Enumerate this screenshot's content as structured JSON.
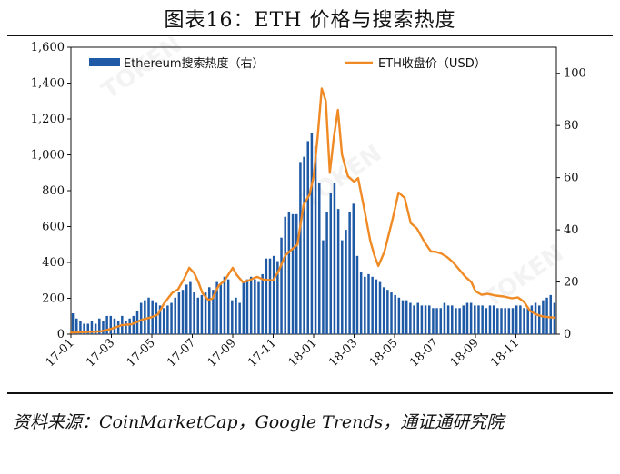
{
  "title": "图表16：ETH 价格与搜索热度",
  "source": "资料来源：CoinMarketCap，Google Trends，通证通研究院",
  "chart_data": {
    "type": "bar+line",
    "legend": [
      {
        "name": "Ethereum搜索热度（右）",
        "kind": "bar",
        "color": "#1f5aa6"
      },
      {
        "name": "ETH收盘价（USD）",
        "kind": "line",
        "color": "#f08a24"
      }
    ],
    "left_axis": {
      "range": [
        0,
        1600
      ],
      "ticks": [
        "0",
        "200",
        "400",
        "600",
        "800",
        "1,000",
        "1,200",
        "1,400",
        "1,600"
      ]
    },
    "right_axis": {
      "range": [
        0,
        110
      ],
      "ticks": [
        "0",
        "20",
        "40",
        "60",
        "80",
        "100"
      ]
    },
    "x_range": [
      0,
      24
    ],
    "x_ticks": [
      {
        "t": 0,
        "label": "17-01"
      },
      {
        "t": 2,
        "label": "17-03"
      },
      {
        "t": 4,
        "label": "17-05"
      },
      {
        "t": 6,
        "label": "17-07"
      },
      {
        "t": 8,
        "label": "17-09"
      },
      {
        "t": 10,
        "label": "17-11"
      },
      {
        "t": 12,
        "label": "18-01"
      },
      {
        "t": 14,
        "label": "18-03"
      },
      {
        "t": 16,
        "label": "18-05"
      },
      {
        "t": 18,
        "label": "18-07"
      },
      {
        "t": 20,
        "label": "18-09"
      },
      {
        "t": 22,
        "label": "18-11"
      }
    ],
    "bar_series": {
      "name": "Ethereum搜索热度（右）",
      "values": [
        8,
        6,
        5,
        4,
        4,
        5,
        4,
        6,
        5,
        7,
        7,
        6,
        5,
        7,
        5,
        6,
        7,
        9,
        12,
        13,
        14,
        13,
        12,
        11,
        10,
        11,
        12,
        14,
        16,
        17,
        19,
        20,
        16,
        14,
        15,
        16,
        18,
        17,
        20,
        19,
        22,
        21,
        13,
        14,
        12,
        20,
        21,
        22,
        21,
        20,
        23,
        29,
        29,
        30,
        28,
        37,
        45,
        47,
        46,
        46,
        66,
        68,
        74,
        77,
        72,
        58,
        36,
        47,
        54,
        58,
        48,
        36,
        40,
        47,
        50,
        30,
        24,
        22,
        23,
        22,
        21,
        20,
        18,
        17,
        16,
        15,
        14,
        13,
        13,
        12,
        11,
        12,
        11,
        11,
        11,
        10,
        10,
        10,
        12,
        11,
        11,
        10,
        10,
        11,
        12,
        12,
        11,
        11,
        11,
        10,
        11,
        11,
        10,
        10,
        10,
        10,
        10,
        11,
        11,
        10,
        10,
        11,
        12,
        11,
        13,
        14,
        15,
        12
      ]
    },
    "line_series": {
      "name": "ETH收盘价（USD）",
      "points": [
        [
          0,
          8
        ],
        [
          0.5,
          11
        ],
        [
          1,
          13
        ],
        [
          1.5,
          16
        ],
        [
          2,
          30
        ],
        [
          2.5,
          50
        ],
        [
          3,
          55
        ],
        [
          3.5,
          80
        ],
        [
          4,
          95
        ],
        [
          4.3,
          110
        ],
        [
          4.6,
          170
        ],
        [
          5,
          230
        ],
        [
          5.3,
          250
        ],
        [
          5.6,
          310
        ],
        [
          5.85,
          370
        ],
        [
          6.1,
          340
        ],
        [
          6.3,
          290
        ],
        [
          6.5,
          230
        ],
        [
          6.8,
          190
        ],
        [
          7,
          200
        ],
        [
          7.3,
          270
        ],
        [
          7.6,
          300
        ],
        [
          8,
          370
        ],
        [
          8.2,
          330
        ],
        [
          8.5,
          290
        ],
        [
          8.8,
          300
        ],
        [
          9.2,
          320
        ],
        [
          9.5,
          305
        ],
        [
          10,
          300
        ],
        [
          10.3,
          360
        ],
        [
          10.6,
          440
        ],
        [
          10.9,
          470
        ],
        [
          11.2,
          500
        ],
        [
          11.5,
          720
        ],
        [
          11.8,
          780
        ],
        [
          12,
          880
        ],
        [
          12.2,
          1100
        ],
        [
          12.4,
          1370
        ],
        [
          12.6,
          1300
        ],
        [
          12.8,
          900
        ],
        [
          13,
          1100
        ],
        [
          13.2,
          1250
        ],
        [
          13.4,
          1000
        ],
        [
          13.7,
          880
        ],
        [
          14,
          850
        ],
        [
          14.2,
          870
        ],
        [
          14.5,
          700
        ],
        [
          14.8,
          520
        ],
        [
          15,
          440
        ],
        [
          15.2,
          380
        ],
        [
          15.5,
          460
        ],
        [
          15.9,
          640
        ],
        [
          16.2,
          790
        ],
        [
          16.5,
          760
        ],
        [
          16.8,
          620
        ],
        [
          17.1,
          590
        ],
        [
          17.5,
          510
        ],
        [
          17.8,
          460
        ],
        [
          18,
          460
        ],
        [
          18.3,
          450
        ],
        [
          18.6,
          430
        ],
        [
          18.9,
          400
        ],
        [
          19.2,
          360
        ],
        [
          19.5,
          320
        ],
        [
          19.8,
          290
        ],
        [
          20,
          240
        ],
        [
          20.3,
          220
        ],
        [
          20.6,
          225
        ],
        [
          21,
          215
        ],
        [
          21.4,
          210
        ],
        [
          21.8,
          200
        ],
        [
          22.1,
          205
        ],
        [
          22.4,
          180
        ],
        [
          22.7,
          130
        ],
        [
          23,
          110
        ],
        [
          23.3,
          100
        ],
        [
          23.6,
          95
        ],
        [
          23.9,
          92
        ]
      ]
    }
  }
}
